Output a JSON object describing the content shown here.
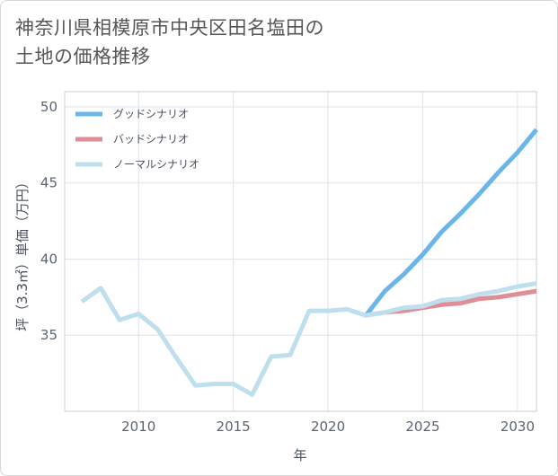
{
  "title_line1": "神奈川県相模原市中央区田名塩田の",
  "title_line2": "土地の価格推移",
  "chart_data": {
    "type": "line",
    "title": "神奈川県相模原市中央区田名塩田の土地の価格推移",
    "xlabel": "年",
    "ylabel": "坪（3.3㎡）単価（万円）",
    "xlim": [
      2006.1,
      2031
    ],
    "ylim": [
      30,
      51
    ],
    "xticks": [
      2010,
      2015,
      2020,
      2025,
      2030
    ],
    "yticks": [
      35,
      40,
      45,
      50
    ],
    "legend_position": "top-left",
    "series": [
      {
        "name": "グッドシナリオ",
        "color": "#6bb6e8",
        "x": [
          2022,
          2023,
          2024,
          2025,
          2026,
          2027,
          2028,
          2029,
          2030,
          2031
        ],
        "values": [
          36.3,
          37.9,
          39.0,
          40.3,
          41.8,
          43.0,
          44.3,
          45.7,
          47.0,
          48.5
        ]
      },
      {
        "name": "バッドシナリオ",
        "color": "#de8e96",
        "x": [
          2022,
          2023,
          2024,
          2025,
          2026,
          2027,
          2028,
          2029,
          2030,
          2031
        ],
        "values": [
          36.3,
          36.5,
          36.6,
          36.8,
          37.0,
          37.1,
          37.4,
          37.5,
          37.7,
          37.9
        ]
      },
      {
        "name": "ノーマルシナリオ",
        "color": "#bfdfee",
        "x": [
          2007,
          2008,
          2009,
          2010,
          2011,
          2012,
          2013,
          2014,
          2015,
          2016,
          2017,
          2018,
          2019,
          2020,
          2021,
          2022,
          2023,
          2024,
          2025,
          2026,
          2027,
          2028,
          2029,
          2030,
          2031
        ],
        "values": [
          37.2,
          38.1,
          36.0,
          36.4,
          35.4,
          33.5,
          31.7,
          31.8,
          31.8,
          31.1,
          33.6,
          33.7,
          36.6,
          36.6,
          36.7,
          36.3,
          36.5,
          36.8,
          36.9,
          37.3,
          37.4,
          37.7,
          37.9,
          38.2,
          38.4
        ]
      }
    ]
  }
}
